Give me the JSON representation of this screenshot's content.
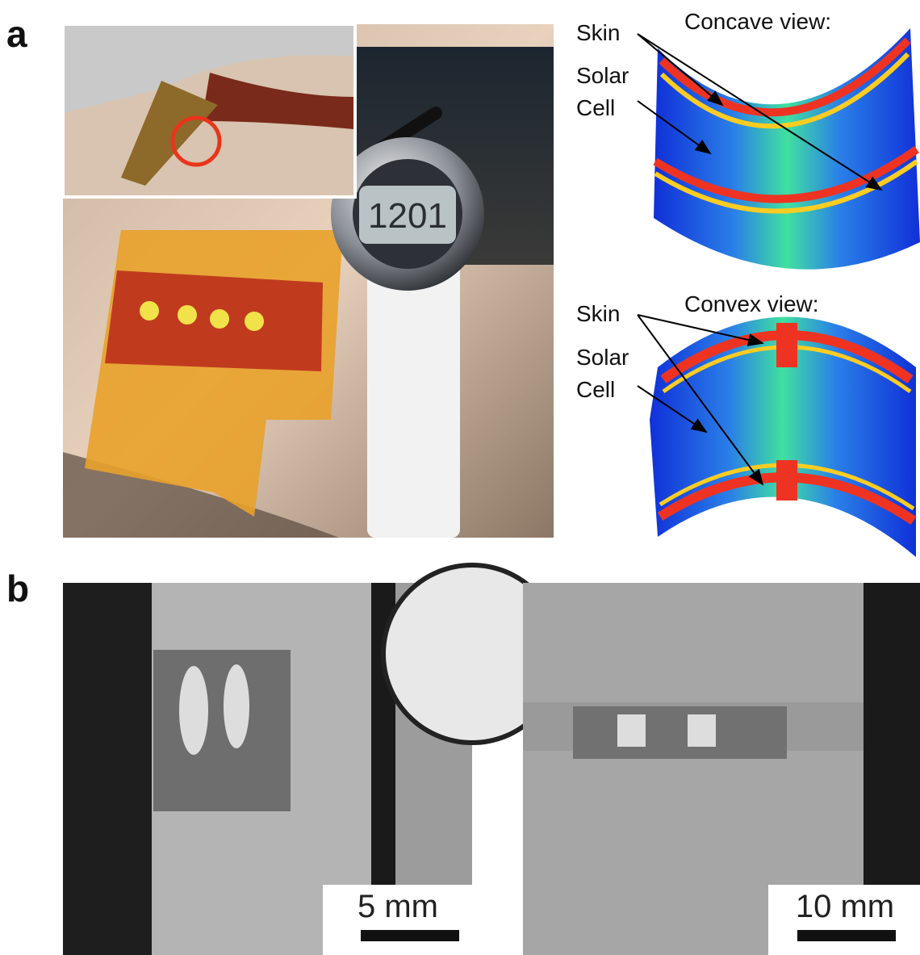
{
  "panels": [
    {
      "label": "a",
      "watch_display": "1201",
      "simulations": [
        {
          "title": "Concave view:",
          "labels": [
            "Skin",
            "Solar",
            "Cell"
          ]
        },
        {
          "title": "Convex view:",
          "labels": [
            "Skin",
            "Solar",
            "Cell"
          ]
        }
      ]
    },
    {
      "label": "b",
      "images": [
        {
          "scale_bar": "5 mm"
        },
        {
          "scale_bar": "10 mm"
        }
      ]
    }
  ]
}
